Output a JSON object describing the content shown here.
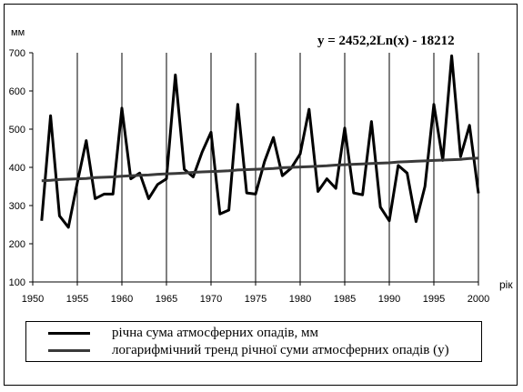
{
  "chart_data": {
    "type": "line",
    "title": "",
    "xlabel": "рік",
    "ylabel": "мм",
    "xlim": [
      1950,
      2000
    ],
    "ylim": [
      100,
      700
    ],
    "x_ticks": [
      1950,
      1955,
      1960,
      1965,
      1970,
      1975,
      1980,
      1985,
      1990,
      1995,
      2000
    ],
    "y_ticks": [
      100,
      200,
      300,
      400,
      500,
      600,
      700
    ],
    "grid": "vertical lines at x ticks",
    "legend_position": "bottom",
    "annotation": "y = 2452,2Ln(x) - 18212",
    "x": [
      1951,
      1952,
      1953,
      1954,
      1955,
      1956,
      1957,
      1958,
      1959,
      1960,
      1961,
      1962,
      1963,
      1964,
      1965,
      1966,
      1967,
      1968,
      1969,
      1970,
      1971,
      1972,
      1973,
      1974,
      1975,
      1976,
      1977,
      1978,
      1979,
      1980,
      1981,
      1982,
      1983,
      1984,
      1985,
      1986,
      1987,
      1988,
      1989,
      1990,
      1991,
      1992,
      1993,
      1994,
      1995,
      1996,
      1997,
      1998,
      1999,
      2000
    ],
    "series": [
      {
        "name": "річна сума атмосферних опадів, мм",
        "color": "#000000",
        "values": [
          260,
          535,
          273,
          243,
          360,
          470,
          318,
          330,
          330,
          555,
          370,
          385,
          318,
          355,
          370,
          642,
          395,
          375,
          440,
          492,
          278,
          288,
          565,
          333,
          330,
          415,
          478,
          378,
          398,
          435,
          552,
          337,
          370,
          345,
          503,
          333,
          328,
          520,
          296,
          260,
          405,
          385,
          258,
          350,
          565,
          418,
          692,
          428,
          510,
          332
        ]
      },
      {
        "name": "логарифмічний тренд річної суми атмосферних опадів (y)",
        "color": "#3a3a3a",
        "values": [
          365,
          366,
          368,
          369,
          370,
          371,
          373,
          374,
          375,
          377,
          378,
          379,
          380,
          382,
          383,
          384,
          385,
          387,
          388,
          389,
          390,
          391,
          393,
          394,
          395,
          396,
          397,
          399,
          400,
          401,
          402,
          403,
          404,
          406,
          407,
          408,
          409,
          410,
          411,
          412,
          414,
          415,
          416,
          417,
          418,
          419,
          420,
          421,
          423,
          424
        ]
      }
    ]
  }
}
